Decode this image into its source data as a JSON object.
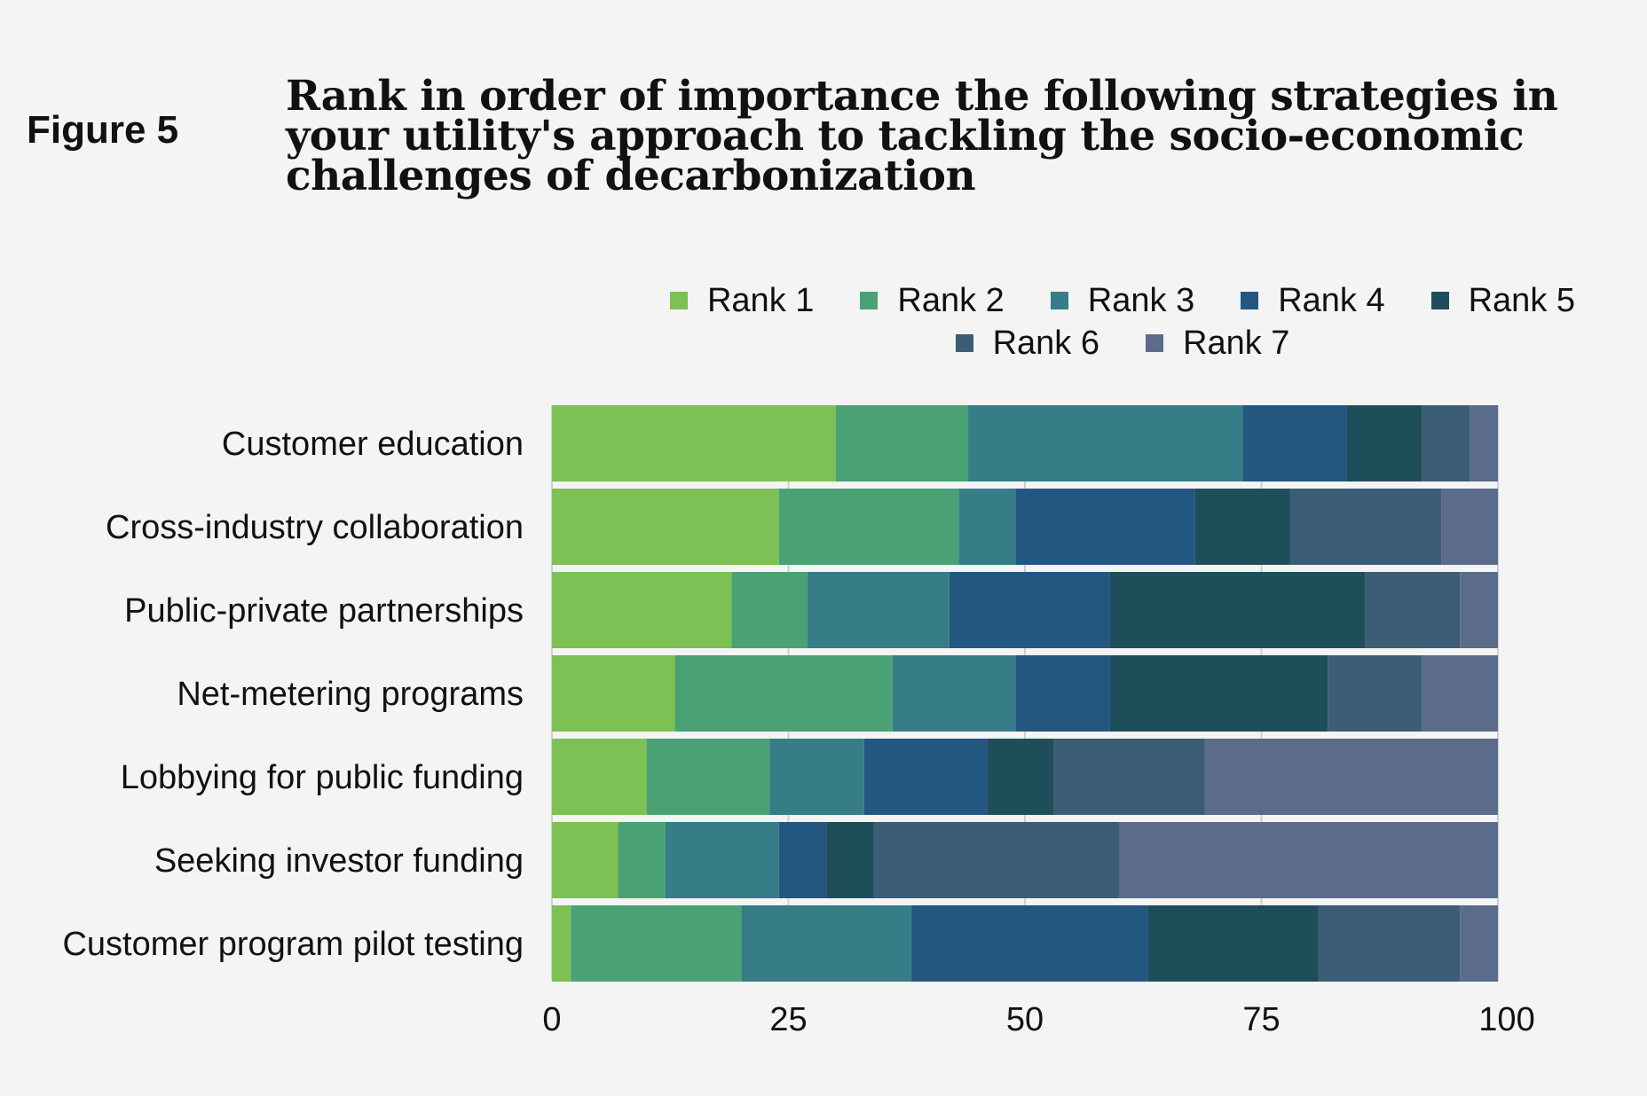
{
  "figure_label": "Figure 5",
  "chart_data": {
    "type": "bar",
    "orientation": "horizontal",
    "stacked": true,
    "title": "Rank in order of importance the following strategies in your utility's approach to tackling the socio-economic challenges of decarbonization",
    "categories": [
      "Customer education",
      "Cross-industry collaboration",
      "Public-private partnerships",
      "Net-metering programs",
      "Lobbying for public funding",
      "Seeking investor funding",
      "Customer program pilot testing"
    ],
    "series": [
      {
        "name": "Rank 1",
        "color": "#7dc053",
        "values": [
          30,
          24,
          19,
          13,
          10,
          7,
          2
        ]
      },
      {
        "name": "Rank 2",
        "color": "#4aa174",
        "values": [
          14,
          19,
          8,
          23,
          13,
          5,
          18
        ]
      },
      {
        "name": "Rank 3",
        "color": "#367d87",
        "values": [
          29,
          6,
          15,
          13,
          10,
          12,
          18
        ]
      },
      {
        "name": "Rank 4",
        "color": "#245780",
        "values": [
          11,
          19,
          17,
          10,
          13,
          5,
          25
        ]
      },
      {
        "name": "Rank 5",
        "color": "#1f4e5b",
        "values": [
          8,
          10,
          27,
          23,
          7,
          5,
          18
        ]
      },
      {
        "name": "Rank 6",
        "color": "#3b5d75",
        "values": [
          5,
          16,
          10,
          10,
          16,
          26,
          15
        ]
      },
      {
        "name": "Rank 7",
        "color": "#5b6c8b",
        "values": [
          3,
          6,
          4,
          8,
          31,
          40,
          4
        ]
      }
    ],
    "xlim": [
      0,
      100
    ],
    "xticks": [
      "0",
      "25",
      "50",
      "75",
      "100"
    ],
    "grid": true,
    "legend_position": "top"
  }
}
